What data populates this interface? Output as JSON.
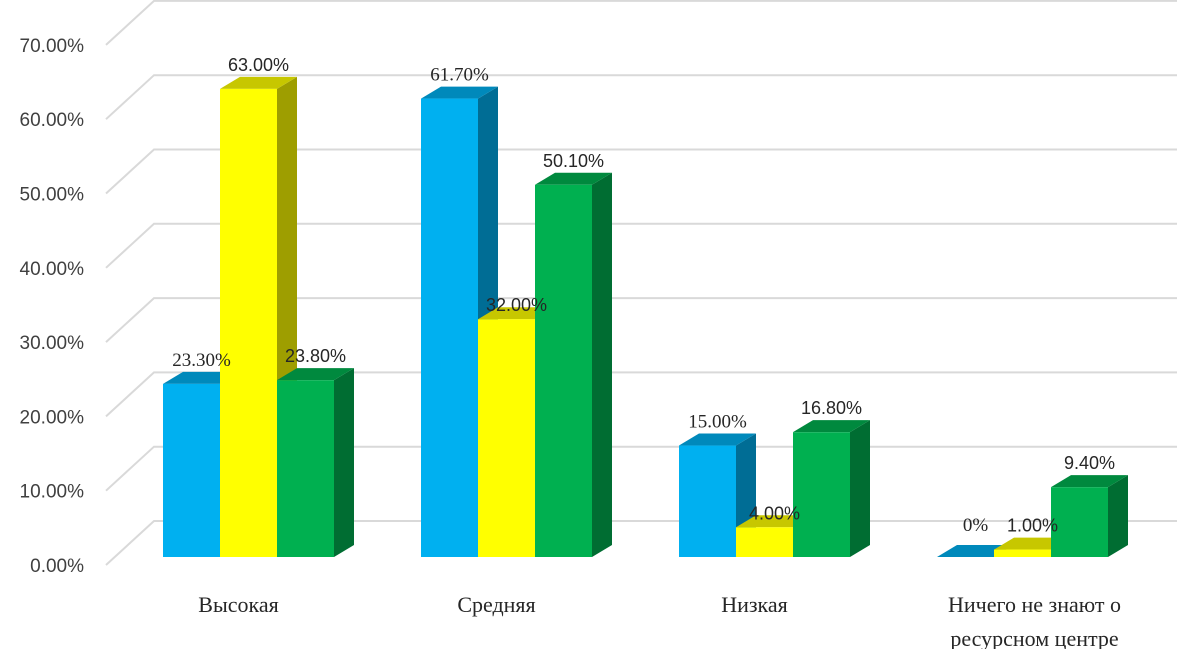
{
  "chart_data": {
    "type": "bar",
    "style": "3d-clustered-column",
    "categories": [
      [
        "Высокая"
      ],
      [
        "Средняя"
      ],
      [
        "Низкая"
      ],
      [
        "Ничего не знают о",
        "ресурсном центре"
      ]
    ],
    "series": [
      {
        "color": "#00B0F0",
        "values": [
          23.3,
          61.7,
          15.0,
          0
        ],
        "labels": [
          "23.30%",
          "61.70%",
          "15.00%",
          "0%"
        ]
      },
      {
        "color": "#FFFF00",
        "values": [
          63.0,
          32.0,
          4.0,
          1.0
        ],
        "labels": [
          "63.00%",
          "32.00%",
          "4.00%",
          "1.00%"
        ]
      },
      {
        "color": "#00B050",
        "values": [
          23.8,
          50.1,
          16.8,
          9.4
        ],
        "labels": [
          "23.80%",
          "50.10%",
          "16.80%",
          "9.40%"
        ]
      }
    ],
    "yticks": [
      "0.00%",
      "10.00%",
      "20.00%",
      "30.00%",
      "40.00%",
      "50.00%",
      "60.00%",
      "70.00%"
    ],
    "ylim": [
      0,
      70
    ],
    "grid": true,
    "legend": "none"
  }
}
